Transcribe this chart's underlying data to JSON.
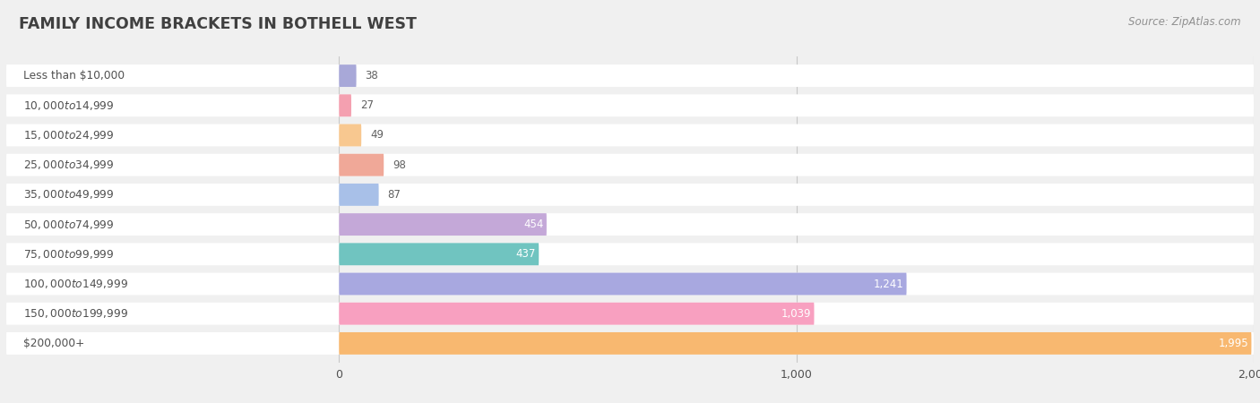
{
  "title": "FAMILY INCOME BRACKETS IN BOTHELL WEST",
  "source": "Source: ZipAtlas.com",
  "categories": [
    "Less than $10,000",
    "$10,000 to $14,999",
    "$15,000 to $24,999",
    "$25,000 to $34,999",
    "$35,000 to $49,999",
    "$50,000 to $74,999",
    "$75,000 to $99,999",
    "$100,000 to $149,999",
    "$150,000 to $199,999",
    "$200,000+"
  ],
  "values": [
    38,
    27,
    49,
    98,
    87,
    454,
    437,
    1241,
    1039,
    1995
  ],
  "bar_colors": [
    "#a8a8d8",
    "#f4a0b0",
    "#f8c890",
    "#f0a898",
    "#a8c0e8",
    "#c4a8d8",
    "#70c4c0",
    "#a8a8e0",
    "#f8a0c0",
    "#f8b870"
  ],
  "background_color": "#f0f0f0",
  "bar_bg_color": "#e4e4e4",
  "row_bg_color": "#ffffff",
  "xlim_max": 2100,
  "x_label_offset": 560,
  "title_color": "#404040",
  "label_color": "#505050",
  "value_color": "#606060",
  "source_color": "#909090",
  "value_label_inside_color": "#ffffff"
}
